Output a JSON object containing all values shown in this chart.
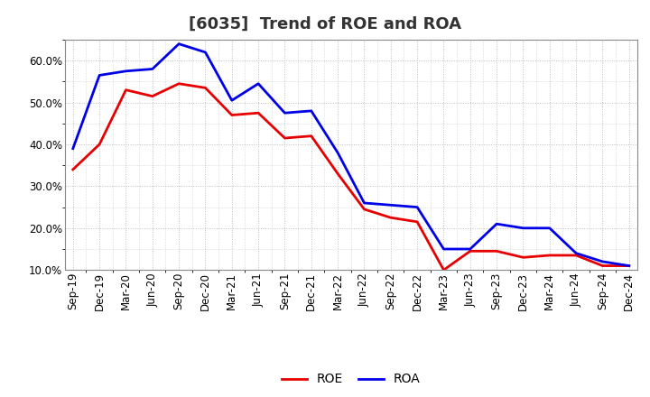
{
  "title": "[6035]  Trend of ROE and ROA",
  "labels": [
    "Sep-19",
    "Dec-19",
    "Mar-20",
    "Jun-20",
    "Sep-20",
    "Dec-20",
    "Mar-21",
    "Jun-21",
    "Sep-21",
    "Dec-21",
    "Mar-22",
    "Jun-22",
    "Sep-22",
    "Dec-22",
    "Mar-23",
    "Jun-23",
    "Sep-23",
    "Dec-23",
    "Mar-24",
    "Jun-24",
    "Sep-24",
    "Dec-24"
  ],
  "ROE": [
    34.0,
    40.0,
    53.0,
    51.5,
    54.5,
    53.5,
    47.0,
    47.5,
    41.5,
    42.0,
    33.0,
    24.5,
    22.5,
    21.5,
    10.0,
    14.5,
    14.5,
    13.0,
    13.5,
    13.5,
    11.0,
    11.0
  ],
  "ROA": [
    39.0,
    56.5,
    57.5,
    58.0,
    64.0,
    62.0,
    50.5,
    54.5,
    47.5,
    48.0,
    38.0,
    26.0,
    25.5,
    25.0,
    15.0,
    15.0,
    21.0,
    20.0,
    20.0,
    14.0,
    12.0,
    11.0
  ],
  "ROE_color": "#e80000",
  "ROA_color": "#0000e8",
  "ylim_min": 10.0,
  "ylim_max": 65.0,
  "yticks": [
    10.0,
    20.0,
    30.0,
    40.0,
    50.0,
    60.0
  ],
  "background_color": "#ffffff",
  "grid_color": "#bbbbbb",
  "title_color": "#333333",
  "title_fontsize": 13,
  "axis_fontsize": 8.5,
  "legend_fontsize": 10,
  "linewidth": 2.0
}
